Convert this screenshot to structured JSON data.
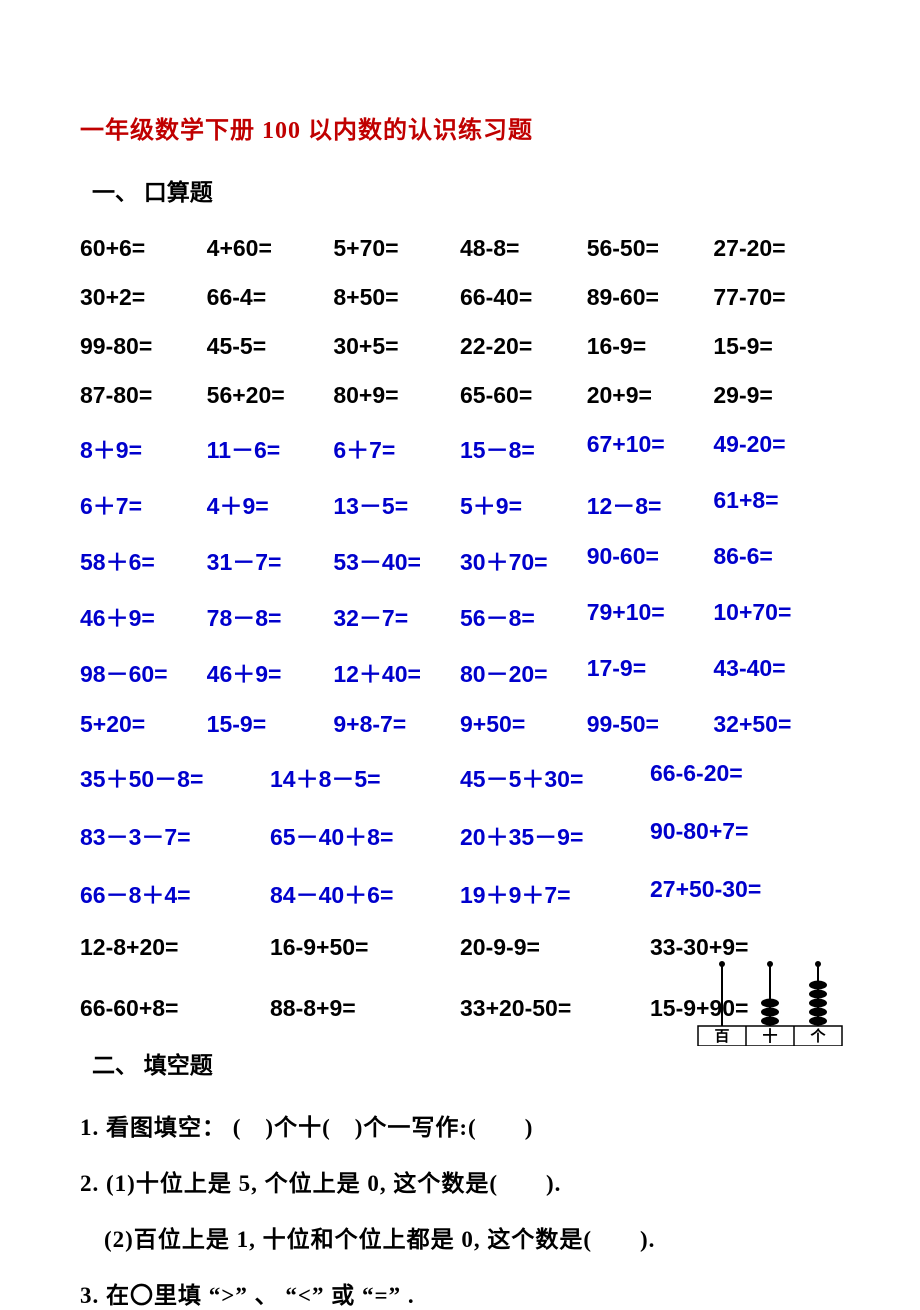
{
  "title": "一年级数学下册 100 以内数的认识练习题",
  "section1_head": "一、 口算题",
  "rows6": [
    {
      "cls": "black",
      "cells": [
        "60+6=",
        "4+60=",
        "5+70=",
        "48-8=",
        "56-50=",
        "27-20="
      ]
    },
    {
      "cls": "black",
      "cells": [
        "30+2=",
        "66-4=",
        "8+50=",
        "66-40=",
        "89-60=",
        "77-70="
      ]
    },
    {
      "cls": "black",
      "cells": [
        "99-80=",
        "45-5=",
        "30+5=",
        "22-20=",
        "16-9=",
        "15-9="
      ]
    },
    {
      "cls": "black",
      "cells": [
        "87-80=",
        "56+20=",
        "80+9=",
        "65-60=",
        "20+9=",
        "29-9="
      ]
    },
    {
      "cls": "blue",
      "cells": [
        "8＋9=",
        "11－6=",
        "6＋7=",
        "15－8=",
        "67+10=",
        "49-20="
      ]
    },
    {
      "cls": "blue",
      "cells": [
        "6＋7=",
        "4＋9=",
        "13－5=",
        "5＋9=",
        "12－8=",
        "61+8="
      ]
    },
    {
      "cls": "blue",
      "cells": [
        "58＋6=",
        "31－7=",
        "53－40=",
        "30＋70=",
        "90-60=",
        "86-6="
      ]
    },
    {
      "cls": "blue",
      "cells": [
        "46＋9=",
        "78－8=",
        "32－7=",
        "56－8=",
        "79+10=",
        "10+70="
      ]
    },
    {
      "cls": "blue",
      "cells": [
        "98－60=",
        "46＋9=",
        "12＋40=",
        "80－20=",
        "17-9=",
        "43-40="
      ]
    },
    {
      "cls": "blue",
      "cells": [
        "5+20=",
        "15-9=",
        "9+8-7=",
        "9+50=",
        "99-50=",
        "32+50="
      ]
    }
  ],
  "rows4": [
    {
      "cls": "blue",
      "cells": [
        "35＋50－8=",
        "14＋8－5=",
        "45－5＋30=",
        "66-6-20="
      ]
    },
    {
      "cls": "blue",
      "cells": [
        "83－3－7=",
        "65－40＋8=",
        "20＋35－9=",
        "90-80+7="
      ]
    },
    {
      "cls": "blue",
      "cells": [
        "66－8＋4=",
        "84－40＋6=",
        "19＋9＋7=",
        "27+50-30="
      ]
    },
    {
      "cls": "black",
      "cells": [
        "12-8+20=",
        "16-9+50=",
        "20-9-9=",
        "33-30+9="
      ]
    },
    {
      "cls": "black",
      "cells": [
        "66-60+8=",
        "88-8+9=",
        "33+20-50=",
        "15-9+90="
      ]
    }
  ],
  "section2_head": "二、 填空题",
  "q1": "1. 看图填空： (　)个十(　)个一写作:(　　)",
  "q2a": "2. (1)十位上是 5, 个位上是 0, 这个数是(　　).",
  "q2b": "　(2)百位上是 1, 十位和个位上都是 0, 这个数是(　　).",
  "q3": "3.  在〇里填 “>” 、 “<” 或 “=” .",
  "abacus": {
    "labels": [
      "百",
      "十",
      "个"
    ],
    "beads": [
      0,
      3,
      5
    ]
  }
}
